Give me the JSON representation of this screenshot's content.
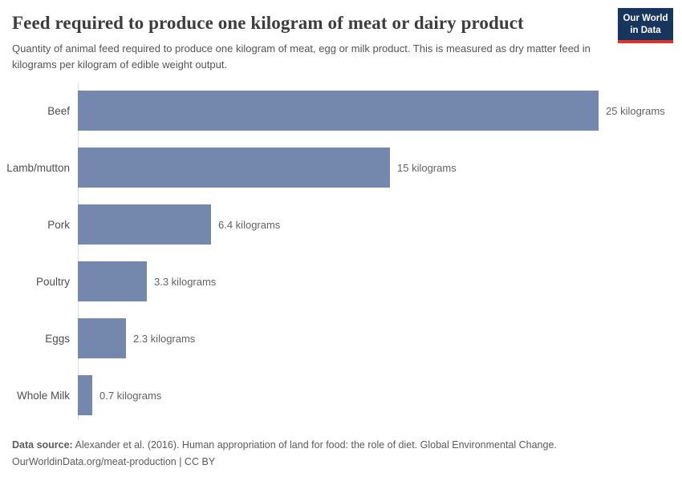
{
  "header": {
    "title": "Feed required to produce one kilogram of meat or dairy product",
    "subtitle": "Quantity of animal feed required to produce one kilogram of meat, egg or milk product. This is measured as dry matter feed in kilograms per kilogram of edible weight output.",
    "logo": {
      "line1": "Our World",
      "line2": "in Data"
    }
  },
  "chart_data": {
    "type": "bar",
    "orientation": "horizontal",
    "categories": [
      "Beef",
      "Lamb/mutton",
      "Pork",
      "Poultry",
      "Eggs",
      "Whole Milk"
    ],
    "values": [
      25,
      15,
      6.4,
      3.3,
      2.3,
      0.7
    ],
    "value_labels": [
      "25 kilograms",
      "15 kilograms",
      "6.4 kilograms",
      "3.3 kilograms",
      "2.3 kilograms",
      "0.7 kilograms"
    ],
    "unit": "kilograms",
    "title": "Feed required to produce one kilogram of meat or dairy product",
    "xlabel": "",
    "ylabel": "",
    "xlim": [
      0,
      25
    ],
    "grid": false,
    "legend": false,
    "bar_color": "#7488ae",
    "axis_color": "#dcdcdc"
  },
  "footer": {
    "datasource_label": "Data source:",
    "datasource_text": " Alexander et al. (2016). Human appropriation of land for food: the role of diet. Global Environmental Change.",
    "link_line": "OurWorldinData.org/meat-production | CC BY"
  },
  "colors": {
    "title": "#3d3d3d",
    "subtitle": "#555555",
    "logo_bg": "#18365d",
    "logo_accent": "#d8352e"
  }
}
